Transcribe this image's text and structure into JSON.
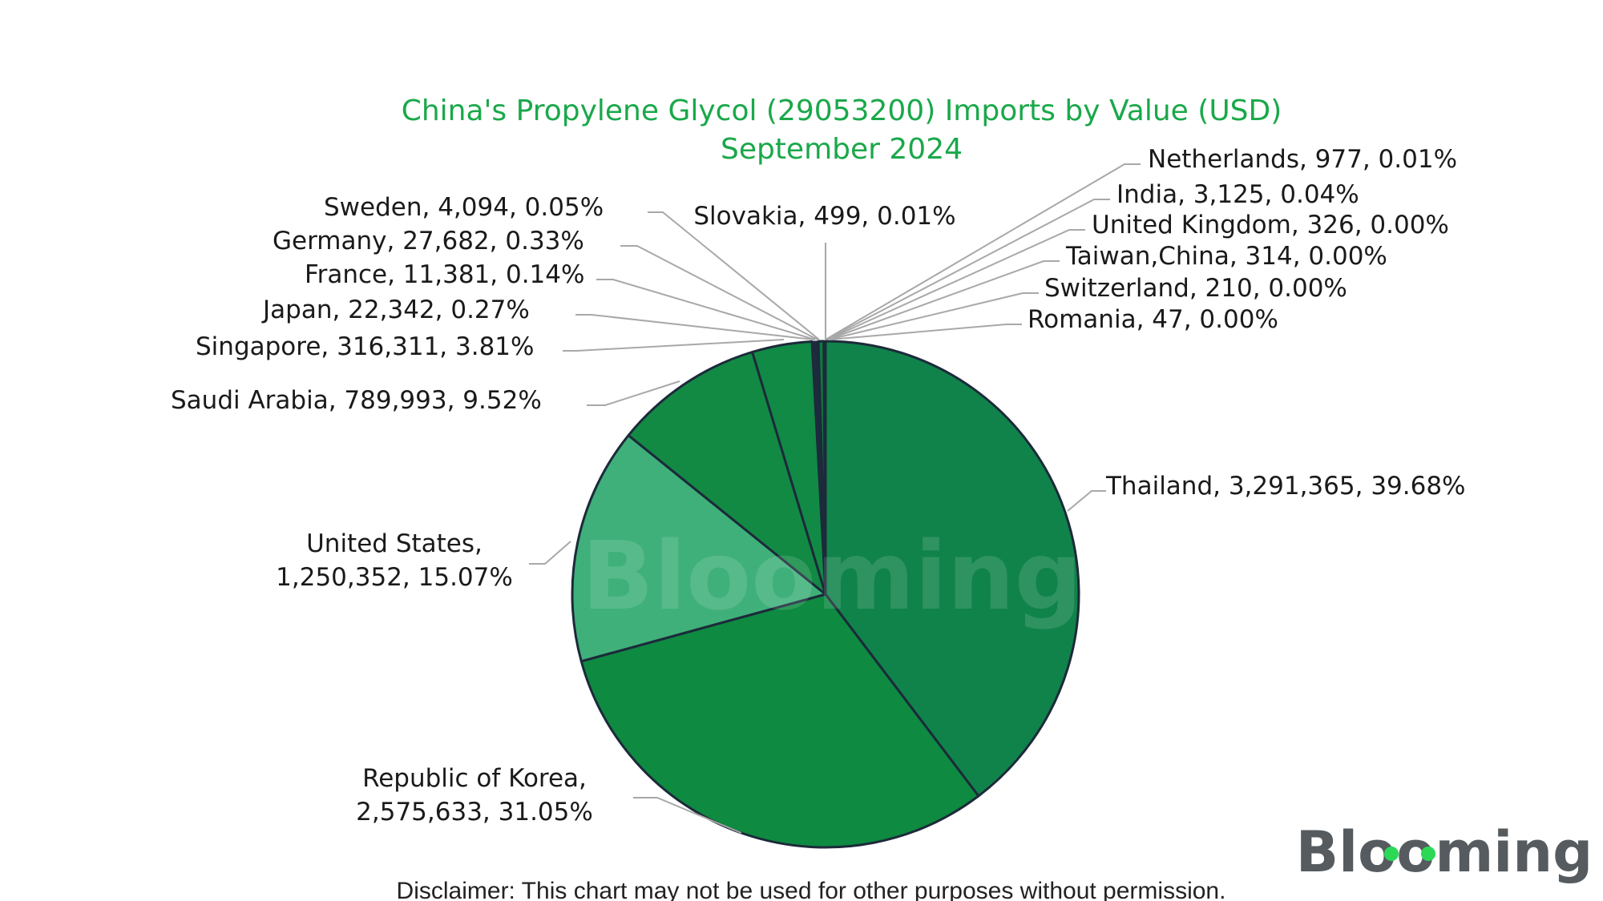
{
  "chart_data": {
    "type": "pie",
    "title": "China's Propylene Glycol (29053200) Imports by Value (USD)",
    "subtitle": "September 2024",
    "slices": [
      {
        "name": "Thailand",
        "value": 3291365,
        "percent": "39.68%",
        "color": "#10834a",
        "label": "Thailand, 3,291,365, 39.68%"
      },
      {
        "name": "Republic of Korea",
        "value": 2575633,
        "percent": "31.05%",
        "color": "#0e8a41",
        "label_lines": [
          "Republic of Korea,",
          "2,575,633, 31.05%"
        ]
      },
      {
        "name": "United States",
        "value": 1250352,
        "percent": "15.07%",
        "color": "#3fb07a",
        "label_lines": [
          "United States,",
          "1,250,352, 15.07%"
        ]
      },
      {
        "name": "Saudi Arabia",
        "value": 789993,
        "percent": "9.52%",
        "color": "#128a44",
        "label": "Saudi Arabia, 789,993, 9.52%"
      },
      {
        "name": "Singapore",
        "value": 316311,
        "percent": "3.81%",
        "color": "#108a45",
        "label": "Singapore, 316,311, 3.81%"
      },
      {
        "name": "Germany",
        "value": 27682,
        "percent": "0.33%",
        "color": "#0f7a3e",
        "label": "Germany, 27,682, 0.33%"
      },
      {
        "name": "Japan",
        "value": 22342,
        "percent": "0.27%",
        "color": "#1f2a40",
        "label": "Japan, 22,342, 0.27%"
      },
      {
        "name": "France",
        "value": 11381,
        "percent": "0.14%",
        "color": "#1f2a40",
        "label": "France, 11,381, 0.14%"
      },
      {
        "name": "Sweden",
        "value": 4094,
        "percent": "0.05%",
        "color": "#1f2a40",
        "label": "Sweden, 4,094, 0.05%"
      },
      {
        "name": "India",
        "value": 3125,
        "percent": "0.04%",
        "color": "#1f2a40",
        "label": "India, 3,125, 0.04%"
      },
      {
        "name": "Netherlands",
        "value": 977,
        "percent": "0.01%",
        "color": "#1f2a40",
        "label": "Netherlands, 977, 0.01%"
      },
      {
        "name": "Slovakia",
        "value": 499,
        "percent": "0.01%",
        "color": "#1f2a40",
        "label": "Slovakia, 499, 0.01%"
      },
      {
        "name": "United Kingdom",
        "value": 326,
        "percent": "0.00%",
        "color": "#1f2a40",
        "label": "United Kingdom, 326, 0.00%"
      },
      {
        "name": "Taiwan,China",
        "value": 314,
        "percent": "0.00%",
        "color": "#1f2a40",
        "label": "Taiwan,China, 314, 0.00%"
      },
      {
        "name": "Switzerland",
        "value": 210,
        "percent": "0.00%",
        "color": "#1f2a40",
        "label": "Switzerland, 210, 0.00%"
      },
      {
        "name": "Romania",
        "value": 47,
        "percent": "0.00%",
        "color": "#1f2a40",
        "label": "Romania, 47, 0.00%"
      }
    ],
    "slice_order_clockwise_from_top": [
      "Thailand",
      "Republic of Korea",
      "United States",
      "Saudi Arabia",
      "Singapore",
      "Japan",
      "France",
      "Germany",
      "Sweden",
      "Slovakia",
      "Netherlands",
      "India",
      "United Kingdom",
      "Taiwan,China",
      "Switzerland",
      "Romania"
    ],
    "slice_border_color": "#1c2a3a",
    "title_color": "#1aa84a"
  },
  "watermark": "Blooming",
  "logo": "Blooming",
  "disclaimer": "Disclaimer: This chart may not be used for other purposes without permission."
}
